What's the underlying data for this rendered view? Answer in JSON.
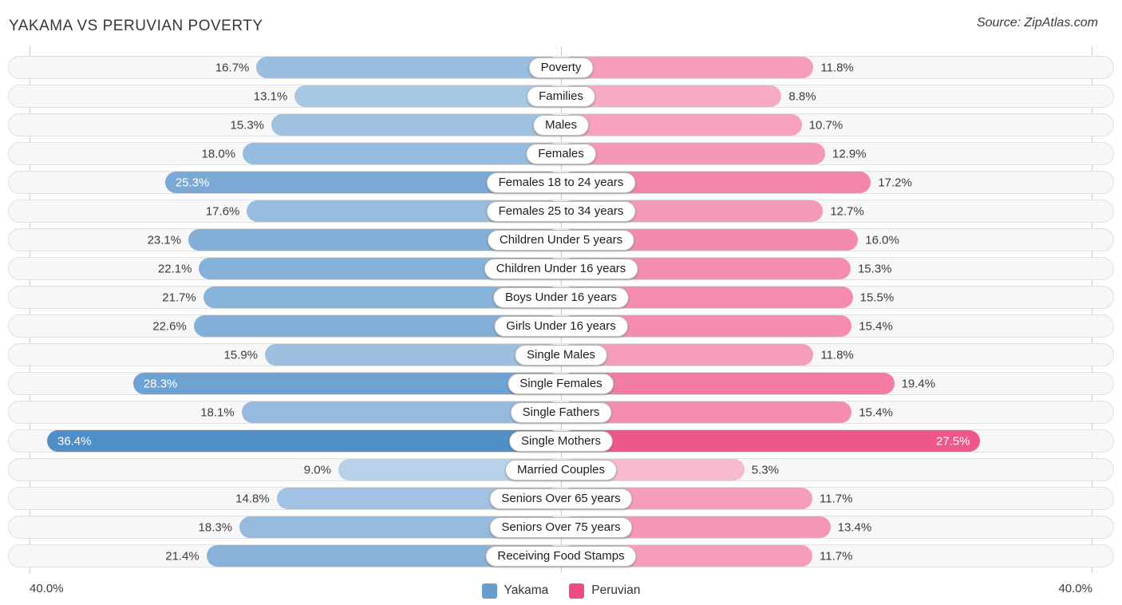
{
  "header": {
    "title": "YAKAMA VS PERUVIAN POVERTY",
    "source": "Source: ZipAtlas.com"
  },
  "axis": {
    "left_max": "40.0%",
    "right_max": "40.0%"
  },
  "legend": {
    "items": [
      {
        "label": "Yakama",
        "color": "#689dd0"
      },
      {
        "label": "Peruvian",
        "color": "#ed4b82"
      }
    ]
  },
  "colors": {
    "yakama_base": "#4285c4",
    "peruvian_base": "#e91e63",
    "track_bg": "#f7f7f7",
    "track_border": "#e0e0e0"
  },
  "chart_data": {
    "type": "bar",
    "orientation": "bidirectional-horizontal",
    "title": "YAKAMA VS PERUVIAN POVERTY",
    "axis_max": 40.0,
    "value_suffix": "%",
    "legend_position": "bottom-center",
    "categories": [
      "Poverty",
      "Families",
      "Males",
      "Females",
      "Females 18 to 24 years",
      "Females 25 to 34 years",
      "Children Under 5 years",
      "Children Under 16 years",
      "Boys Under 16 years",
      "Girls Under 16 years",
      "Single Males",
      "Single Females",
      "Single Fathers",
      "Single Mothers",
      "Married Couples",
      "Seniors Over 65 years",
      "Seniors Over 75 years",
      "Receiving Food Stamps"
    ],
    "series": [
      {
        "name": "Yakama",
        "values": [
          16.7,
          13.1,
          15.3,
          18.0,
          25.3,
          17.6,
          23.1,
          22.1,
          21.7,
          22.6,
          15.9,
          28.3,
          18.1,
          36.4,
          9.0,
          14.8,
          18.3,
          21.4
        ]
      },
      {
        "name": "Peruvian",
        "values": [
          11.8,
          8.8,
          10.7,
          12.9,
          17.2,
          12.7,
          16.0,
          15.3,
          15.5,
          15.4,
          11.8,
          19.4,
          15.4,
          27.5,
          5.3,
          11.7,
          13.4,
          11.7
        ]
      }
    ]
  }
}
